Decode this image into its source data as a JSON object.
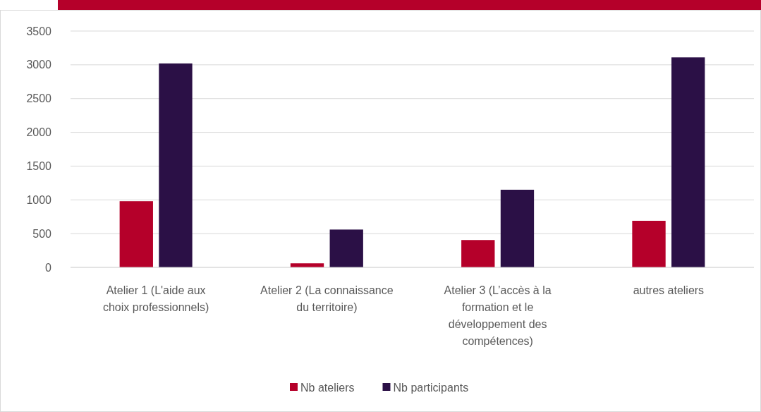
{
  "chart_data": {
    "type": "bar",
    "categories": [
      "Atelier 1 (L'aide aux choix professionnels)",
      "Atelier 2 (La connaissance du territoire)",
      "Atelier 3 (L’accès à la formation et le développement des compétences)",
      "autres ateliers"
    ],
    "series": [
      {
        "name": "Nb ateliers",
        "color": "#b5002a",
        "values": [
          980,
          60,
          405,
          690
        ]
      },
      {
        "name": "Nb participants",
        "color": "#2b1046",
        "values": [
          3020,
          560,
          1150,
          3110
        ]
      }
    ],
    "ylim": [
      0,
      3500
    ],
    "yticks": [
      0,
      500,
      1000,
      1500,
      2000,
      2500,
      3000,
      3500
    ],
    "grid": "y",
    "legend": "bottom"
  }
}
